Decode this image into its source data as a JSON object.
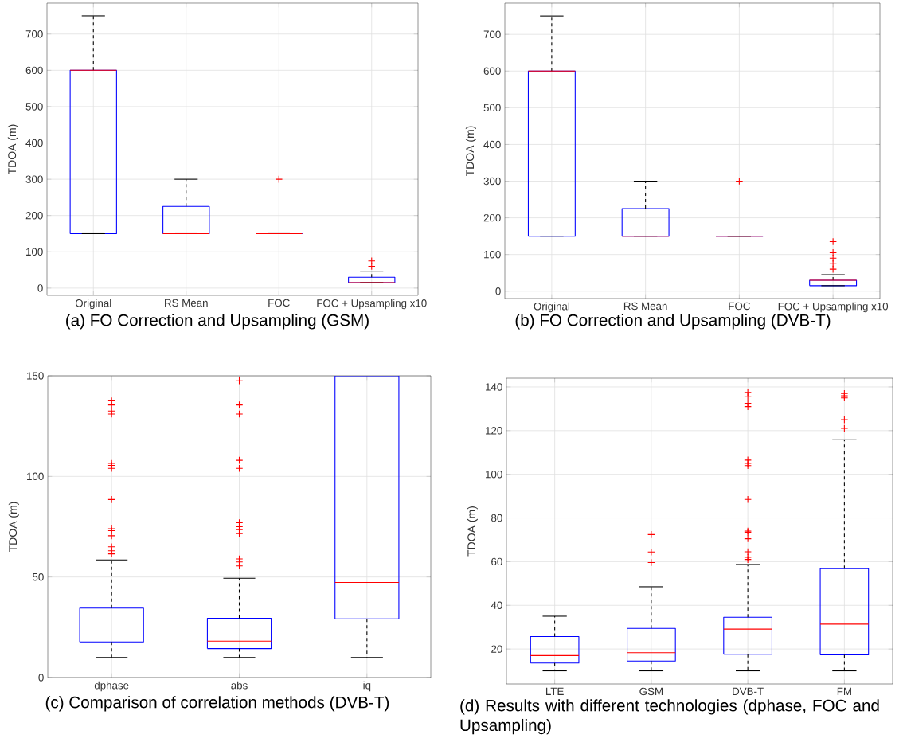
{
  "chart_data": [
    {
      "type": "box",
      "title": "(a) FO Correction and Upsampling (GSM)",
      "ylabel": "TDOA (m)",
      "categories": [
        "Original",
        "RS Mean",
        "FOC",
        "FOC + Upsampling x10"
      ],
      "ylim": [
        -20,
        785
      ],
      "yticks": [
        0,
        100,
        200,
        300,
        400,
        500,
        600,
        700
      ],
      "grid": true,
      "boxes": [
        {
          "low": 150,
          "q1": 150,
          "median": 600,
          "q3": 600,
          "high": 750
        },
        {
          "low": 150,
          "q1": 150,
          "median": 150,
          "q3": 225,
          "high": 300
        },
        {
          "low": 150,
          "q1": 150,
          "median": 150,
          "q3": 150,
          "high": 150,
          "outliers": [
            300
          ]
        },
        {
          "low": 15,
          "q1": 15,
          "median": 15,
          "q3": 30,
          "high": 45,
          "outliers": [
            60,
            75
          ]
        }
      ]
    },
    {
      "type": "box",
      "title": "(b) FO Correction and Upsampling (DVB-T)",
      "ylabel": "TDOA (m)",
      "categories": [
        "Original",
        "RS Mean",
        "FOC",
        "FOC + Upsampling x10"
      ],
      "ylim": [
        -20,
        785
      ],
      "yticks": [
        0,
        100,
        200,
        300,
        400,
        500,
        600,
        700
      ],
      "grid": true,
      "boxes": [
        {
          "low": 150,
          "q1": 150,
          "median": 600,
          "q3": 600,
          "high": 750
        },
        {
          "low": 150,
          "q1": 150,
          "median": 150,
          "q3": 225,
          "high": 300
        },
        {
          "low": 150,
          "q1": 150,
          "median": 150,
          "q3": 150,
          "high": 150,
          "outliers": [
            300
          ]
        },
        {
          "low": 15,
          "q1": 15,
          "median": 30,
          "q3": 30,
          "high": 45,
          "outliers": [
            60,
            75,
            90,
            105,
            135
          ]
        }
      ]
    },
    {
      "type": "box",
      "title": "(c) Comparison of correlation methods (DVB-T)",
      "ylabel": "TDOA (m)",
      "categories": [
        "dphase",
        "abs",
        "iq"
      ],
      "ylim": [
        0,
        150
      ],
      "yticks": [
        0,
        50,
        100,
        150
      ],
      "grid": true,
      "boxes": [
        {
          "low": 10,
          "q1": 17.7,
          "median": 29.1,
          "q3": 34.5,
          "high": 58.5,
          "outliers": [
            61.5,
            63,
            65,
            70.5,
            73,
            74,
            88.5,
            104,
            105.5,
            106.5,
            131,
            132.5,
            135.5,
            137.5
          ]
        },
        {
          "low": 10,
          "q1": 14.4,
          "median": 18.1,
          "q3": 29.5,
          "high": 49.4,
          "outliers": [
            55.5,
            57.5,
            59,
            71.5,
            73.5,
            75,
            77,
            104,
            108,
            131,
            135.5,
            147.5
          ]
        },
        {
          "low": 10,
          "q1": 29.2,
          "median": 47.3,
          "q3": 150,
          "high": null
        }
      ]
    },
    {
      "type": "box",
      "title": "(d) Results with different technologies (dphase, FOC and Upsampling)",
      "ylabel": "TDOA (m)",
      "categories": [
        "LTE",
        "GSM",
        "DVB-T",
        "FM"
      ],
      "ylim": [
        4,
        144
      ],
      "yticks": [
        20,
        40,
        60,
        80,
        100,
        120,
        140
      ],
      "grid": true,
      "boxes": [
        {
          "low": 10,
          "q1": 13.6,
          "median": 17,
          "q3": 25.7,
          "high": 35
        },
        {
          "low": 10,
          "q1": 14.5,
          "median": 18.3,
          "q3": 29.4,
          "high": 48.5,
          "outliers": [
            59.6,
            64.4,
            72.4
          ]
        },
        {
          "low": 10,
          "q1": 17.6,
          "median": 29.1,
          "q3": 34.5,
          "high": 58.7,
          "outliers": [
            61,
            62,
            64.5,
            70.5,
            73.5,
            74,
            88.5,
            104,
            105,
            106.5,
            131,
            132.5,
            135.5,
            137.5
          ]
        },
        {
          "low": 10,
          "q1": 17.3,
          "median": 31.4,
          "q3": 56.8,
          "high": 115.8,
          "outliers": [
            121,
            125,
            135,
            136,
            137
          ]
        }
      ]
    }
  ]
}
